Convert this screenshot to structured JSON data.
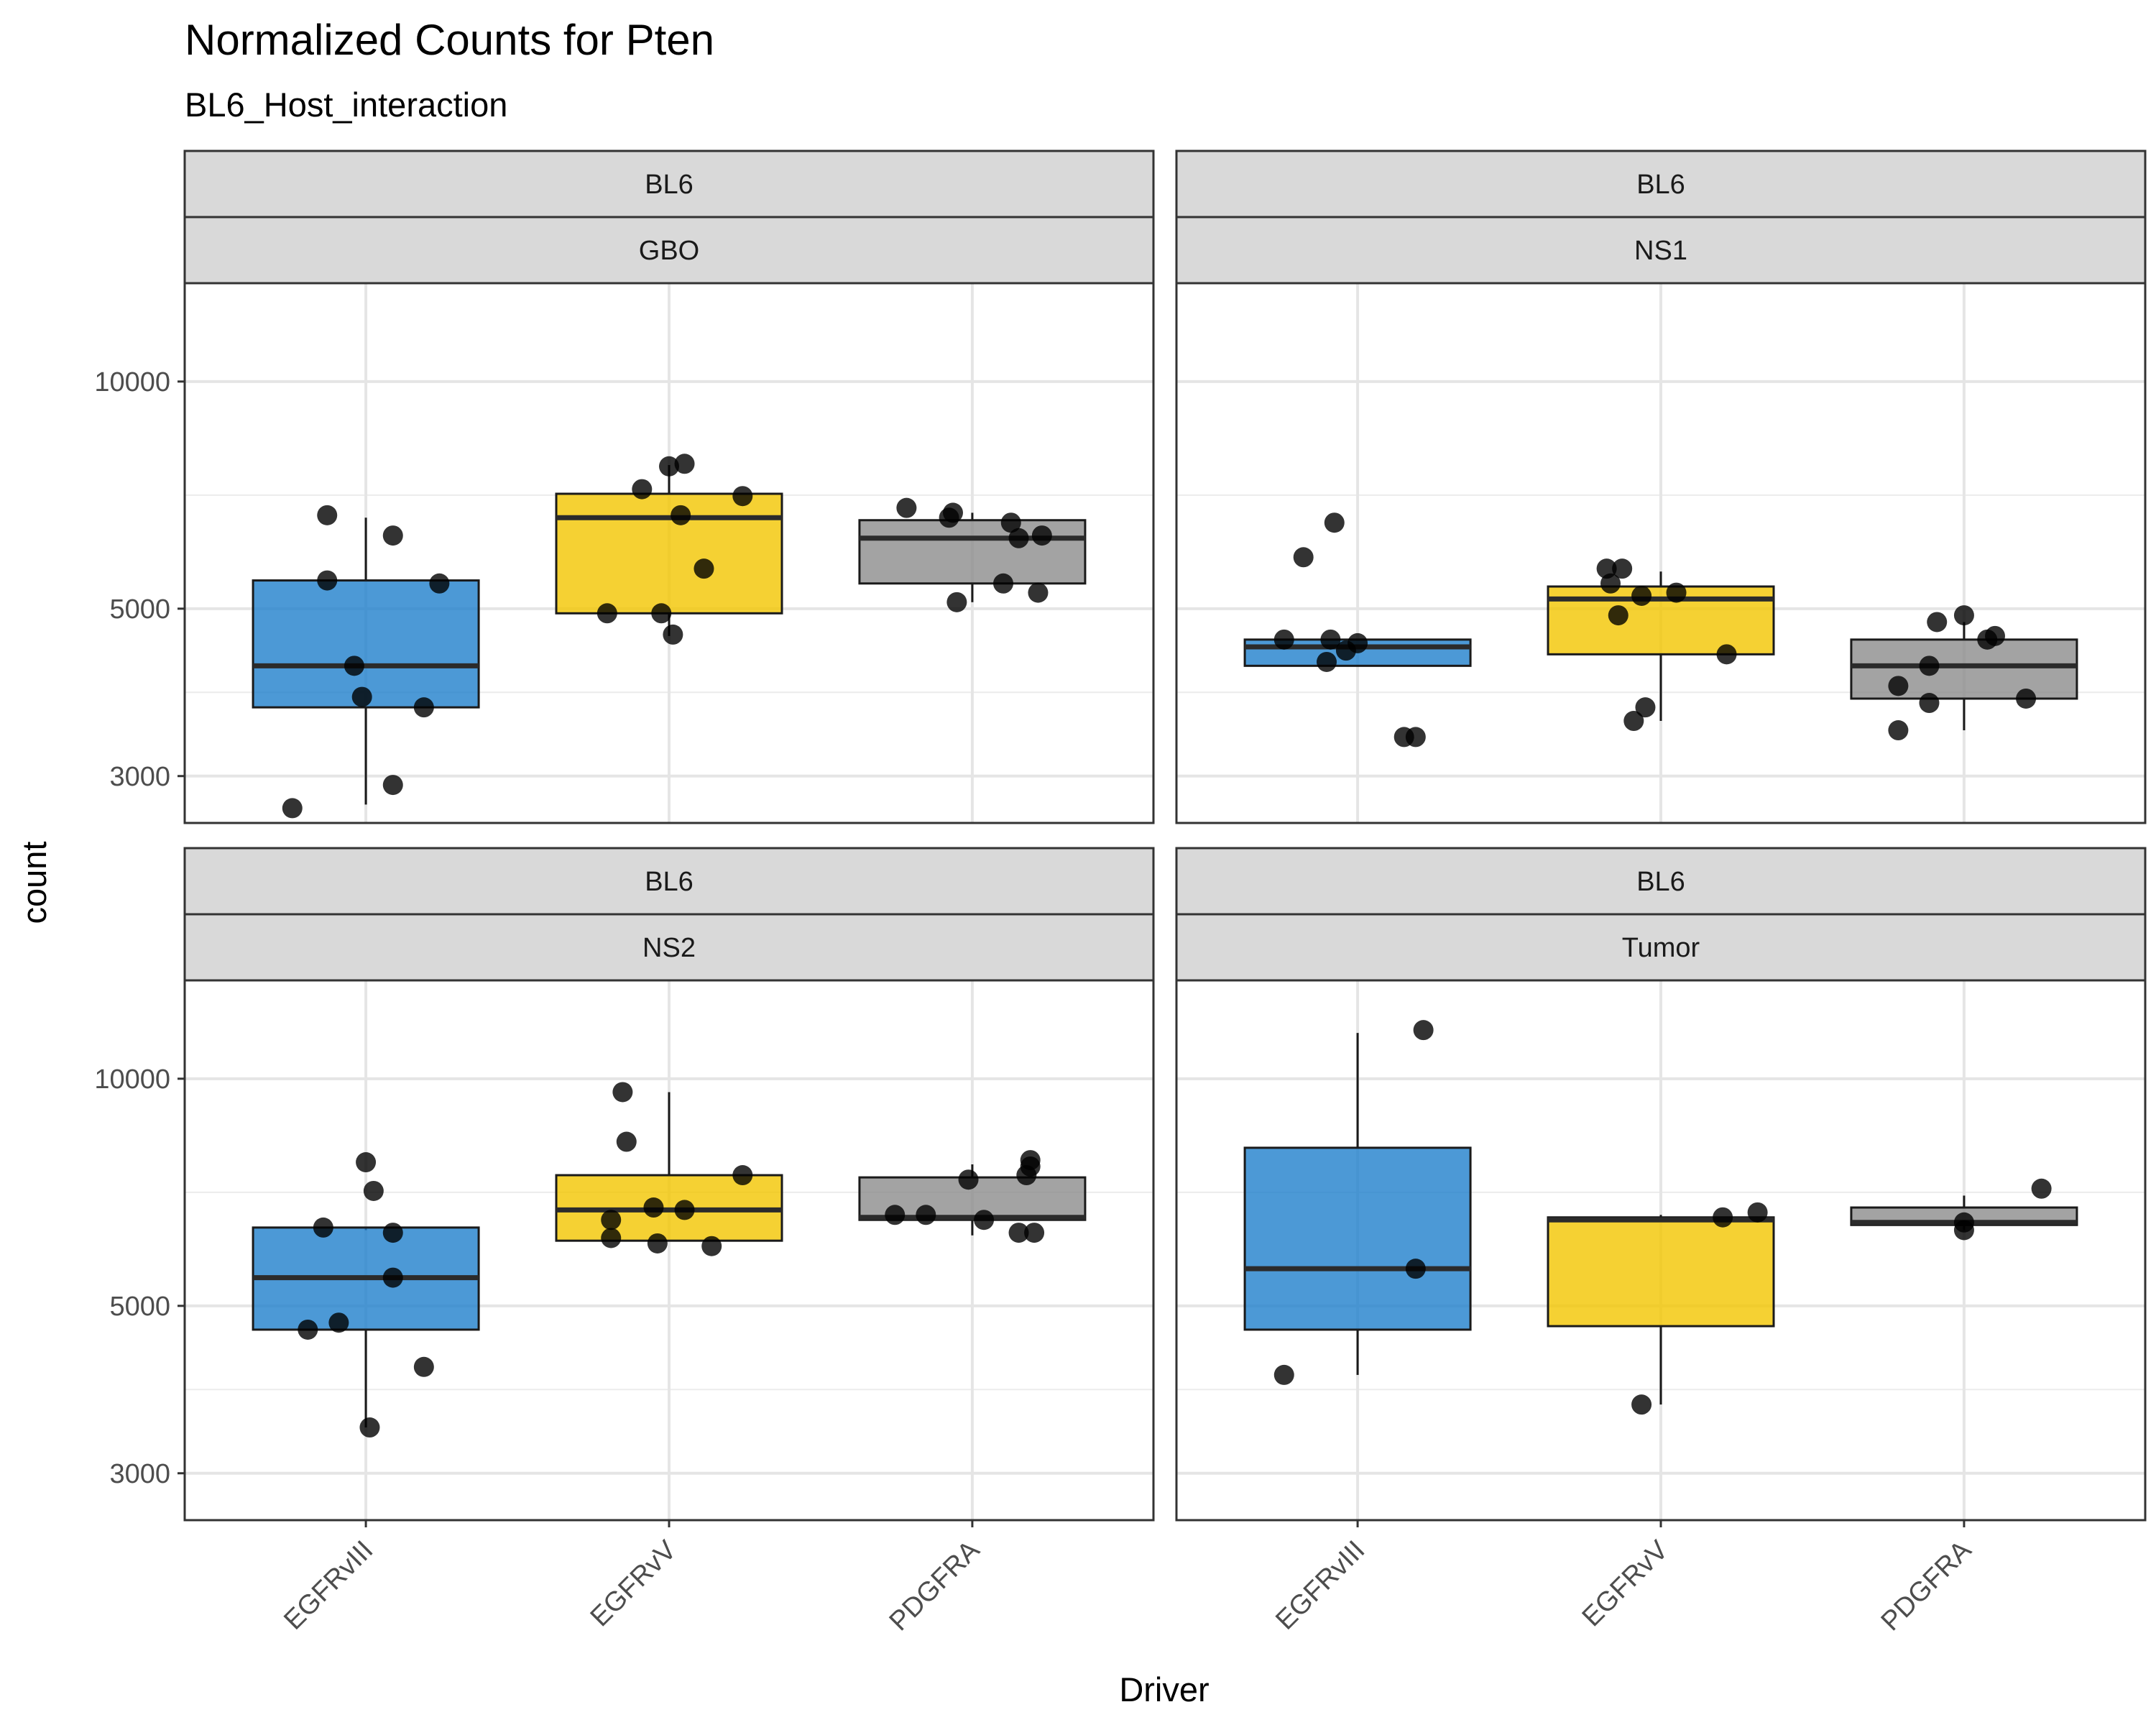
{
  "chart_data": {
    "type": "box",
    "title": "Normalized Counts for Pten",
    "subtitle": "BL6_Host_interaction",
    "xlabel": "Driver",
    "ylabel": "count",
    "y_scale": "log10",
    "ylim": [
      2600,
      13500
    ],
    "y_ticks": [
      3000,
      5000,
      10000
    ],
    "y_tick_labels": [
      "3000",
      "5000",
      "10000"
    ],
    "categories": [
      "EGFRvIII",
      "EGFRvV",
      "PDGFRA"
    ],
    "colors": {
      "EGFRvIII": "#1f7fcc",
      "EGFRvV": "#f2c500",
      "PDGFRA": "#8c8c8c"
    },
    "grid": true,
    "legend": "none",
    "panels": [
      {
        "strip": [
          "BL6",
          "GBO"
        ],
        "boxes": [
          {
            "driver": "EGFRvIII",
            "q1": 3700,
            "median": 4200,
            "q3": 5450,
            "lower": 2750,
            "upper": 6600,
            "points": [
              [
                -0.19,
                2720
              ],
              [
                0.07,
                2920
              ],
              [
                -0.1,
                6650
              ],
              [
                0.07,
                6250
              ],
              [
                -0.1,
                5450
              ],
              [
                0.19,
                5400
              ],
              [
                -0.03,
                4200
              ],
              [
                -0.01,
                3820
              ],
              [
                0.15,
                3700
              ]
            ]
          },
          {
            "driver": "EGFRvV",
            "q1": 4930,
            "median": 6600,
            "q3": 7100,
            "lower": 4600,
            "upper": 7750,
            "points": [
              [
                0.0,
                7720
              ],
              [
                0.04,
                7780
              ],
              [
                -0.07,
                7200
              ],
              [
                0.19,
                7050
              ],
              [
                0.03,
                6650
              ],
              [
                0.09,
                5650
              ],
              [
                -0.16,
                4930
              ],
              [
                -0.02,
                4930
              ],
              [
                0.01,
                4620
              ]
            ]
          },
          {
            "driver": "PDGFRA",
            "q1": 5400,
            "median": 6200,
            "q3": 6550,
            "lower": 5100,
            "upper": 6700,
            "points": [
              [
                -0.17,
                6800
              ],
              [
                -0.05,
                6700
              ],
              [
                -0.06,
                6600
              ],
              [
                0.1,
                6500
              ],
              [
                0.12,
                6200
              ],
              [
                0.18,
                6250
              ],
              [
                0.08,
                5400
              ],
              [
                0.17,
                5250
              ],
              [
                -0.04,
                5100
              ]
            ]
          }
        ]
      },
      {
        "strip": [
          "BL6",
          "NS1"
        ],
        "boxes": [
          {
            "driver": "EGFRvIII",
            "q1": 4200,
            "median": 4450,
            "q3": 4550,
            "lower": 4200,
            "upper": 4550,
            "points": [
              [
                -0.06,
                6500
              ],
              [
                -0.14,
                5850
              ],
              [
                -0.19,
                4550
              ],
              [
                -0.07,
                4550
              ],
              [
                0.0,
                4500
              ],
              [
                -0.03,
                4400
              ],
              [
                -0.08,
                4250
              ],
              [
                0.12,
                3380
              ],
              [
                0.15,
                3380
              ]
            ]
          },
          {
            "driver": "EGFRvV",
            "q1": 4350,
            "median": 5150,
            "q3": 5350,
            "lower": 3550,
            "upper": 5600,
            "points": [
              [
                -0.14,
                5650
              ],
              [
                -0.1,
                5650
              ],
              [
                -0.13,
                5400
              ],
              [
                -0.05,
                5200
              ],
              [
                0.04,
                5250
              ],
              [
                -0.11,
                4900
              ],
              [
                0.17,
                4350
              ],
              [
                -0.04,
                3700
              ],
              [
                -0.07,
                3550
              ]
            ]
          },
          {
            "driver": "PDGFRA",
            "q1": 3800,
            "median": 4200,
            "q3": 4550,
            "lower": 3450,
            "upper": 4800,
            "points": [
              [
                0.0,
                4900
              ],
              [
                -0.07,
                4800
              ],
              [
                0.08,
                4600
              ],
              [
                0.06,
                4550
              ],
              [
                -0.09,
                4200
              ],
              [
                -0.17,
                3950
              ],
              [
                -0.09,
                3750
              ],
              [
                0.16,
                3800
              ],
              [
                -0.17,
                3450
              ]
            ]
          }
        ]
      },
      {
        "strip": [
          "BL6",
          "NS2"
        ],
        "boxes": [
          {
            "driver": "EGFRvIII",
            "q1": 4650,
            "median": 5450,
            "q3": 6350,
            "lower": 3450,
            "upper": 6300,
            "points": [
              [
                0.0,
                7750
              ],
              [
                0.02,
                7100
              ],
              [
                -0.11,
                6350
              ],
              [
                0.07,
                6250
              ],
              [
                0.07,
                5450
              ],
              [
                -0.07,
                4750
              ],
              [
                -0.15,
                4650
              ],
              [
                0.15,
                4150
              ],
              [
                0.01,
                3450
              ]
            ]
          },
          {
            "driver": "EGFRvV",
            "q1": 6100,
            "median": 6700,
            "q3": 7450,
            "lower": 6100,
            "upper": 9600,
            "points": [
              [
                -0.12,
                9600
              ],
              [
                -0.11,
                8250
              ],
              [
                0.19,
                7450
              ],
              [
                -0.04,
                6750
              ],
              [
                0.04,
                6700
              ],
              [
                -0.15,
                6500
              ],
              [
                -0.15,
                6150
              ],
              [
                -0.03,
                6050
              ],
              [
                0.11,
                6000
              ]
            ]
          },
          {
            "driver": "PDGFRA",
            "q1": 6500,
            "median": 6550,
            "q3": 7400,
            "lower": 6200,
            "upper": 7700,
            "points": [
              [
                0.15,
                7800
              ],
              [
                0.15,
                7650
              ],
              [
                0.14,
                7450
              ],
              [
                -0.01,
                7350
              ],
              [
                -0.2,
                6600
              ],
              [
                -0.12,
                6600
              ],
              [
                0.03,
                6500
              ],
              [
                0.12,
                6250
              ],
              [
                0.16,
                6250
              ]
            ]
          }
        ]
      },
      {
        "strip": [
          "BL6",
          "Tumor"
        ],
        "boxes": [
          {
            "driver": "EGFRvIII",
            "q1": 4650,
            "median": 5600,
            "q3": 8100,
            "lower": 4050,
            "upper": 11500,
            "points": [
              [
                0.17,
                11600
              ],
              [
                0.15,
                5600
              ],
              [
                -0.19,
                4050
              ]
            ]
          },
          {
            "driver": "EGFRvV",
            "q1": 4700,
            "median": 6500,
            "q3": 6550,
            "lower": 3700,
            "upper": 6600,
            "points": [
              [
                0.16,
                6550
              ],
              [
                0.25,
                6650
              ],
              [
                -0.05,
                3700
              ]
            ]
          },
          {
            "driver": "PDGFRA",
            "q1": 6400,
            "median": 6450,
            "q3": 6750,
            "lower": 6300,
            "upper": 7000,
            "points": [
              [
                0.2,
                7150
              ],
              [
                0.0,
                6450
              ],
              [
                0.0,
                6300
              ]
            ]
          }
        ]
      }
    ]
  }
}
